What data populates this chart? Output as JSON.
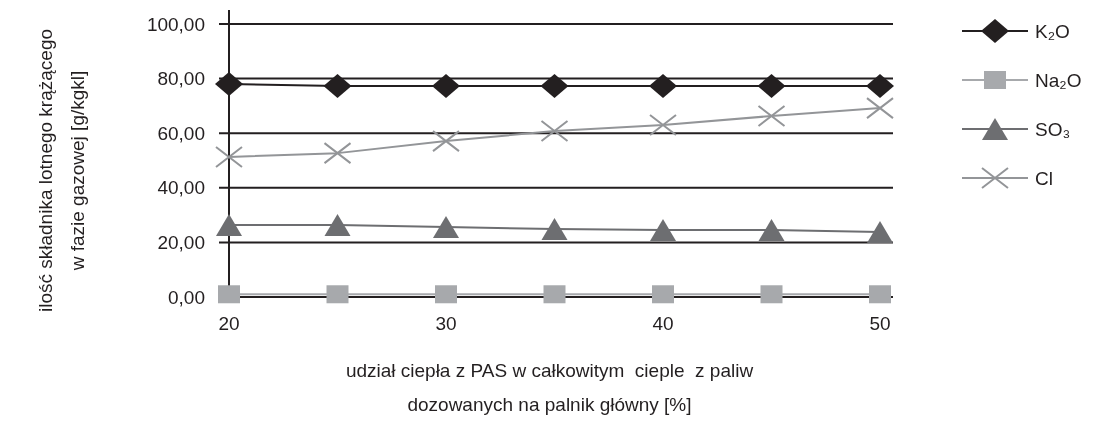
{
  "chart_data": {
    "type": "line",
    "xlabel": "udział ciepła z PAS w całkowitym  cieple  z paliw\ndozowanych na palnik główny [%]",
    "ylabel": "ilość składnika lotnego krążącego\nw fazie gazowej [g/kgkl]",
    "x": [
      20,
      25,
      30,
      35,
      40,
      45,
      50
    ],
    "xlim": [
      20,
      50
    ],
    "xticks": [
      20,
      30,
      40,
      50
    ],
    "ylim": [
      0,
      100
    ],
    "yticks": [
      {
        "value": 0,
        "label": "0,00"
      },
      {
        "value": 20,
        "label": "20,00"
      },
      {
        "value": 40,
        "label": "40,00"
      },
      {
        "value": 60,
        "label": "60,00"
      },
      {
        "value": 80,
        "label": "80,00"
      },
      {
        "value": 100,
        "label": "100,00"
      }
    ],
    "grid": "y",
    "legend": "right",
    "series": [
      {
        "name": "K₂O",
        "color": "#231f20",
        "marker": "diamond",
        "values": [
          78.0,
          77.3,
          77.3,
          77.3,
          77.3,
          77.3,
          77.3
        ]
      },
      {
        "name": "Na₂O",
        "color": "#a7a9ac",
        "marker": "square",
        "values": [
          1,
          1,
          1,
          1,
          1,
          1,
          1
        ]
      },
      {
        "name": "SO₃",
        "color": "#6d6e71",
        "marker": "triangle",
        "values": [
          26.4,
          26.4,
          25.6,
          24.9,
          24.5,
          24.5,
          23.8
        ]
      },
      {
        "name": "Cl",
        "color": "#939598",
        "marker": "cross",
        "values": [
          51.3,
          52.7,
          57.1,
          60.8,
          63.0,
          66.3,
          69.2
        ]
      }
    ]
  }
}
